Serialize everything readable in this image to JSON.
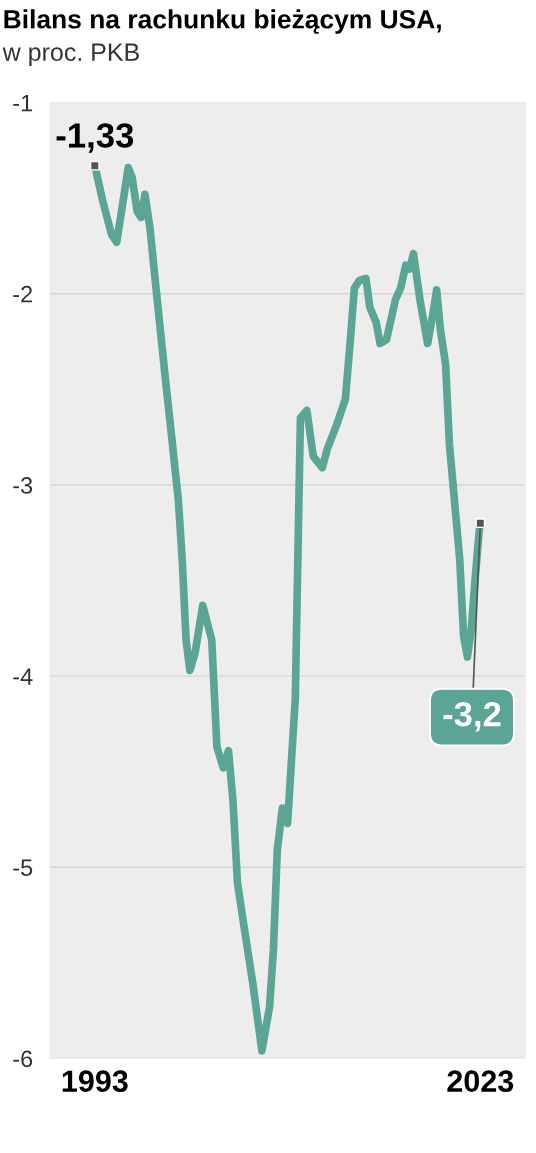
{
  "chart_data": {
    "type": "line",
    "title": "Bilans na rachunku bieżącym USA,",
    "subtitle": "w proc. PKB",
    "x": [
      1993.0,
      1993.6,
      1994.3,
      1994.7,
      1995.1,
      1995.6,
      1995.9,
      1996.3,
      1996.6,
      1996.9,
      1997.3,
      1997.7,
      1998.1,
      1998.5,
      1999.0,
      1999.5,
      1999.8,
      2000.1,
      2000.4,
      2000.8,
      2001.4,
      2002.1,
      2002.5,
      2003.0,
      2003.4,
      2003.75,
      2004.1,
      2004.5,
      2005.3,
      2006.0,
      2006.6,
      2006.9,
      2007.2,
      2007.6,
      2008.0,
      2008.6,
      2009.0,
      2009.5,
      2010.0,
      2010.7,
      2011.1,
      2011.8,
      2012.5,
      2012.9,
      2013.2,
      2013.6,
      2014.1,
      2014.4,
      2014.9,
      2015.2,
      2015.7,
      2016.4,
      2016.8,
      2017.2,
      2017.5,
      2017.8,
      2018.3,
      2018.9,
      2019.3,
      2019.6,
      2019.9,
      2020.3,
      2020.6,
      2021.0,
      2021.4,
      2021.7,
      2022.0,
      2022.3,
      2022.6,
      2022.9,
      2023.0
    ],
    "series": [
      {
        "color": "#5aa596",
        "values": [
          -1.33,
          -1.51,
          -1.69,
          -1.73,
          -1.56,
          -1.34,
          -1.39,
          -1.57,
          -1.6,
          -1.48,
          -1.66,
          -1.93,
          -2.19,
          -2.45,
          -2.76,
          -3.08,
          -3.39,
          -3.81,
          -3.97,
          -3.88,
          -3.63,
          -3.81,
          -4.37,
          -4.48,
          -4.39,
          -4.65,
          -5.08,
          -5.26,
          -5.61,
          -5.96,
          -5.73,
          -5.43,
          -4.91,
          -4.69,
          -4.77,
          -4.12,
          -2.65,
          -2.61,
          -2.85,
          -2.91,
          -2.81,
          -2.69,
          -2.55,
          -2.23,
          -1.97,
          -1.93,
          -1.92,
          -2.07,
          -2.15,
          -2.26,
          -2.24,
          -2.03,
          -1.97,
          -1.85,
          -1.87,
          -1.79,
          -2.03,
          -2.26,
          -2.11,
          -1.98,
          -2.19,
          -2.37,
          -2.79,
          -3.09,
          -3.39,
          -3.79,
          -3.9,
          -3.75,
          -3.49,
          -3.25,
          -3.2
        ]
      }
    ],
    "xlim": [
      1989.5,
      2026.5
    ],
    "ylim": [
      -6,
      -1
    ],
    "xticks": [
      {
        "value": 1993,
        "label": "1993"
      },
      {
        "value": 2023,
        "label": "2023"
      }
    ],
    "yticks": [
      {
        "value": -1,
        "label": "-1"
      },
      {
        "value": -2,
        "label": "-2"
      },
      {
        "value": -3,
        "label": "-3"
      },
      {
        "value": -4,
        "label": "-4"
      },
      {
        "value": -5,
        "label": "-5"
      },
      {
        "value": -6,
        "label": "-6"
      }
    ],
    "grid": "y",
    "marker": "none",
    "line_style": "solid",
    "annotations": [
      {
        "text": "-1,33",
        "x": 1993.0,
        "y": -1.33
      },
      {
        "text": "-3,2",
        "x": 2023.0,
        "y": -3.2
      }
    ]
  }
}
